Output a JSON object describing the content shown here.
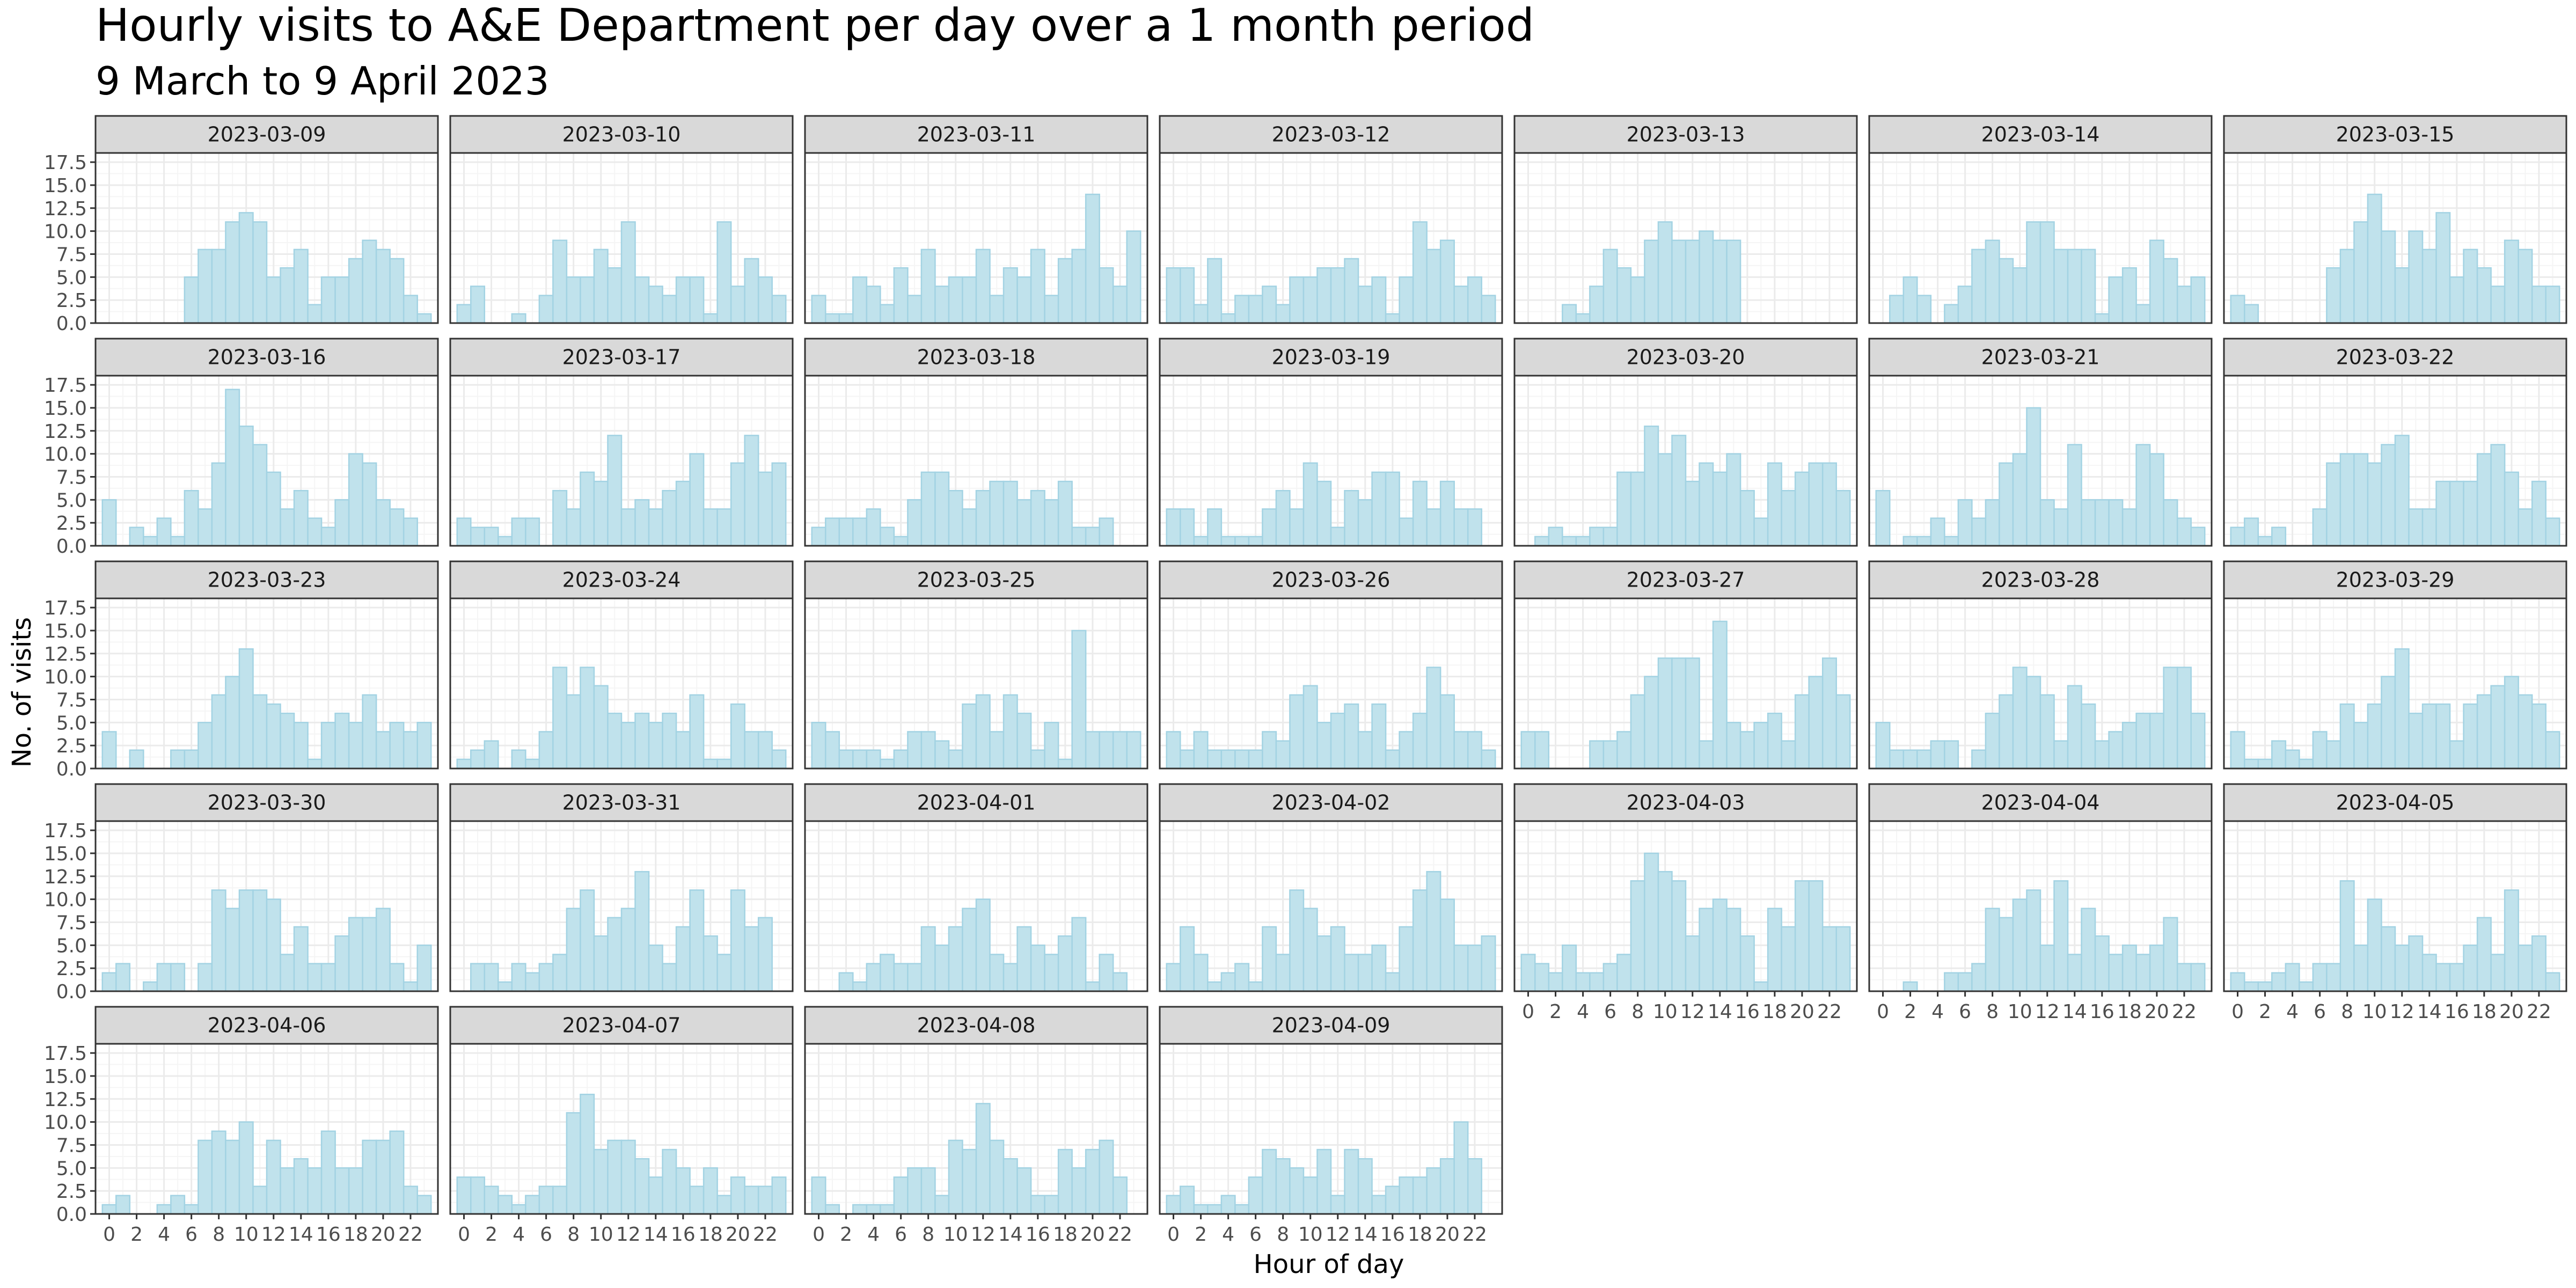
{
  "chart_data": {
    "type": "bar",
    "title": "Hourly visits to A&E Department per day over a 1 month period",
    "subtitle": "9 March to 9 April 2023",
    "xlabel": "Hour of day",
    "ylabel": "No. of visits",
    "ylim": [
      0,
      18.5
    ],
    "yticks": [
      0,
      2.5,
      5,
      7.5,
      10,
      12.5,
      15,
      17.5
    ],
    "ytick_labels": [
      "0.0",
      "2.5",
      "5.0",
      "7.5",
      "10.0",
      "12.5",
      "15.0",
      "17.5"
    ],
    "xlim": [
      -1,
      24
    ],
    "xticks": [
      0,
      2,
      4,
      6,
      8,
      10,
      12,
      14,
      16,
      18,
      20,
      22
    ],
    "xtick_labels": [
      "0",
      "2",
      "4",
      "6",
      "8",
      "10",
      "12",
      "14",
      "16",
      "18",
      "20",
      "22"
    ],
    "grid": true,
    "legend": "none",
    "layout": {
      "columns": 7,
      "rows": 5
    },
    "colors": {
      "bar_fill": "#c0e2ec",
      "bar_stroke": "#a3d3e3",
      "strip_fill": "#d9d9d9",
      "panel_border": "#333333",
      "grid_major": "#ebebeb",
      "grid_minor": "#f5f5f5"
    },
    "hours": [
      0,
      1,
      2,
      3,
      4,
      5,
      6,
      7,
      8,
      9,
      10,
      11,
      12,
      13,
      14,
      15,
      16,
      17,
      18,
      19,
      20,
      21,
      22,
      23
    ],
    "facets": [
      {
        "label": "2023-03-09",
        "values": [
          0,
          0,
          0,
          0,
          0,
          0,
          5,
          8,
          8,
          11,
          12,
          11,
          5,
          6,
          8,
          2,
          5,
          5,
          7,
          9,
          8,
          7,
          3,
          1
        ]
      },
      {
        "label": "2023-03-10",
        "values": [
          2,
          4,
          0,
          0,
          1,
          0,
          3,
          9,
          5,
          5,
          8,
          6,
          11,
          5,
          4,
          3,
          5,
          5,
          1,
          11,
          4,
          7,
          5,
          3
        ]
      },
      {
        "label": "2023-03-11",
        "values": [
          3,
          1,
          1,
          5,
          4,
          2,
          6,
          3,
          8,
          4,
          5,
          5,
          8,
          3,
          6,
          5,
          8,
          3,
          7,
          8,
          14,
          6,
          4,
          10
        ]
      },
      {
        "label": "2023-03-12",
        "values": [
          6,
          6,
          2,
          7,
          1,
          3,
          3,
          4,
          2,
          5,
          5,
          6,
          6,
          7,
          4,
          5,
          1,
          5,
          11,
          8,
          9,
          4,
          5,
          3
        ]
      },
      {
        "label": "2023-03-13",
        "values": [
          0,
          0,
          0,
          2,
          1,
          4,
          8,
          6,
          5,
          9,
          11,
          9,
          9,
          10,
          9,
          9,
          0,
          0,
          0,
          0,
          0,
          0,
          0,
          0
        ]
      },
      {
        "label": "2023-03-14",
        "values": [
          0,
          3,
          5,
          3,
          0,
          2,
          4,
          8,
          9,
          7,
          6,
          11,
          11,
          8,
          8,
          8,
          1,
          5,
          6,
          2,
          9,
          7,
          4,
          5
        ]
      },
      {
        "label": "2023-03-15",
        "values": [
          3,
          2,
          0,
          0,
          0,
          0,
          0,
          6,
          8,
          11,
          14,
          10,
          6,
          10,
          8,
          12,
          5,
          8,
          6,
          4,
          9,
          8,
          4,
          4
        ]
      },
      {
        "label": "2023-03-16",
        "values": [
          5,
          0,
          2,
          1,
          3,
          1,
          6,
          4,
          9,
          17,
          13,
          11,
          8,
          4,
          6,
          3,
          2,
          5,
          10,
          9,
          5,
          4,
          3,
          0
        ]
      },
      {
        "label": "2023-03-17",
        "values": [
          3,
          2,
          2,
          1,
          3,
          3,
          0,
          6,
          4,
          8,
          7,
          12,
          4,
          5,
          4,
          6,
          7,
          10,
          4,
          4,
          9,
          12,
          8,
          9
        ]
      },
      {
        "label": "2023-03-18",
        "values": [
          2,
          3,
          3,
          3,
          4,
          2,
          1,
          5,
          8,
          8,
          6,
          4,
          6,
          7,
          7,
          5,
          6,
          5,
          7,
          2,
          2,
          3,
          0,
          0
        ]
      },
      {
        "label": "2023-03-19",
        "values": [
          4,
          4,
          1,
          4,
          1,
          1,
          1,
          4,
          6,
          4,
          9,
          7,
          2,
          6,
          5,
          8,
          8,
          3,
          7,
          4,
          7,
          4,
          4,
          0
        ]
      },
      {
        "label": "2023-03-20",
        "values": [
          0,
          1,
          2,
          1,
          1,
          2,
          2,
          8,
          8,
          13,
          10,
          12,
          7,
          9,
          8,
          10,
          6,
          3,
          9,
          6,
          8,
          9,
          9,
          6
        ]
      },
      {
        "label": "2023-03-21",
        "values": [
          6,
          0,
          1,
          1,
          3,
          1,
          5,
          3,
          5,
          9,
          10,
          15,
          5,
          4,
          11,
          5,
          5,
          5,
          4,
          11,
          10,
          5,
          3,
          2
        ]
      },
      {
        "label": "2023-03-22",
        "values": [
          2,
          3,
          1,
          2,
          0,
          0,
          4,
          9,
          10,
          10,
          9,
          11,
          12,
          4,
          4,
          7,
          7,
          7,
          10,
          11,
          8,
          4,
          7,
          3
        ]
      },
      {
        "label": "2023-03-23",
        "values": [
          4,
          0,
          2,
          0,
          0,
          2,
          2,
          5,
          8,
          10,
          13,
          8,
          7,
          6,
          5,
          1,
          5,
          6,
          5,
          8,
          4,
          5,
          4,
          5
        ]
      },
      {
        "label": "2023-03-24",
        "values": [
          1,
          2,
          3,
          0,
          2,
          1,
          4,
          11,
          8,
          11,
          9,
          6,
          5,
          6,
          5,
          6,
          4,
          8,
          1,
          1,
          7,
          4,
          4,
          2
        ]
      },
      {
        "label": "2023-03-25",
        "values": [
          5,
          4,
          2,
          2,
          2,
          1,
          2,
          4,
          4,
          3,
          2,
          7,
          8,
          4,
          8,
          6,
          2,
          5,
          1,
          15,
          4,
          4,
          4,
          4
        ]
      },
      {
        "label": "2023-03-26",
        "values": [
          4,
          2,
          4,
          2,
          2,
          2,
          2,
          4,
          3,
          8,
          9,
          5,
          6,
          7,
          4,
          7,
          2,
          4,
          6,
          11,
          8,
          4,
          4,
          2
        ]
      },
      {
        "label": "2023-03-27",
        "values": [
          4,
          4,
          0,
          0,
          0,
          3,
          3,
          4,
          8,
          10,
          12,
          12,
          12,
          3,
          16,
          5,
          4,
          5,
          6,
          3,
          8,
          10,
          12,
          8
        ]
      },
      {
        "label": "2023-03-28",
        "values": [
          5,
          2,
          2,
          2,
          3,
          3,
          0,
          2,
          6,
          8,
          11,
          10,
          8,
          3,
          9,
          7,
          3,
          4,
          5,
          6,
          6,
          11,
          11,
          6
        ]
      },
      {
        "label": "2023-03-29",
        "values": [
          4,
          1,
          1,
          3,
          2,
          1,
          4,
          3,
          7,
          5,
          7,
          10,
          13,
          6,
          7,
          7,
          3,
          7,
          8,
          9,
          10,
          8,
          7,
          4
        ]
      },
      {
        "label": "2023-03-30",
        "values": [
          2,
          3,
          0,
          1,
          3,
          3,
          0,
          3,
          11,
          9,
          11,
          11,
          10,
          4,
          7,
          3,
          3,
          6,
          8,
          8,
          9,
          3,
          1,
          5
        ]
      },
      {
        "label": "2023-03-31",
        "values": [
          0,
          3,
          3,
          1,
          3,
          2,
          3,
          4,
          9,
          11,
          6,
          8,
          9,
          13,
          5,
          3,
          7,
          11,
          6,
          4,
          11,
          7,
          8,
          0
        ]
      },
      {
        "label": "2023-04-01",
        "values": [
          0,
          0,
          2,
          1,
          3,
          4,
          3,
          3,
          7,
          5,
          7,
          9,
          10,
          4,
          3,
          7,
          5,
          4,
          6,
          8,
          1,
          4,
          2,
          0
        ]
      },
      {
        "label": "2023-04-02",
        "values": [
          3,
          7,
          4,
          1,
          2,
          3,
          1,
          7,
          4,
          11,
          9,
          6,
          7,
          4,
          4,
          5,
          2,
          7,
          11,
          13,
          10,
          5,
          5,
          6
        ]
      },
      {
        "label": "2023-04-03",
        "values": [
          4,
          3,
          2,
          5,
          2,
          2,
          3,
          4,
          12,
          15,
          13,
          12,
          6,
          9,
          10,
          9,
          6,
          1,
          9,
          7,
          12,
          12,
          7,
          7
        ]
      },
      {
        "label": "2023-04-04",
        "values": [
          0,
          0,
          1,
          0,
          0,
          2,
          2,
          3,
          9,
          8,
          10,
          11,
          5,
          12,
          4,
          9,
          6,
          4,
          5,
          4,
          5,
          8,
          3,
          3
        ]
      },
      {
        "label": "2023-04-05",
        "values": [
          2,
          1,
          1,
          2,
          3,
          1,
          3,
          3,
          12,
          5,
          10,
          7,
          5,
          6,
          4,
          3,
          3,
          5,
          8,
          4,
          11,
          5,
          6,
          2
        ]
      },
      {
        "label": "2023-04-06",
        "values": [
          1,
          2,
          0,
          0,
          1,
          2,
          1,
          8,
          9,
          8,
          10,
          3,
          8,
          5,
          6,
          5,
          9,
          5,
          5,
          8,
          8,
          9,
          3,
          2
        ]
      },
      {
        "label": "2023-04-07",
        "values": [
          4,
          4,
          3,
          2,
          1,
          2,
          3,
          3,
          11,
          13,
          7,
          8,
          8,
          6,
          4,
          7,
          5,
          3,
          5,
          2,
          4,
          3,
          3,
          4
        ]
      },
      {
        "label": "2023-04-08",
        "values": [
          4,
          1,
          0,
          1,
          1,
          1,
          4,
          5,
          5,
          2,
          8,
          7,
          12,
          8,
          6,
          5,
          2,
          2,
          7,
          5,
          7,
          8,
          4,
          0
        ]
      },
      {
        "label": "2023-04-09",
        "values": [
          2,
          3,
          1,
          1,
          2,
          1,
          4,
          7,
          6,
          5,
          4,
          7,
          2,
          7,
          6,
          2,
          3,
          4,
          4,
          5,
          6,
          10,
          6,
          0
        ]
      }
    ]
  }
}
